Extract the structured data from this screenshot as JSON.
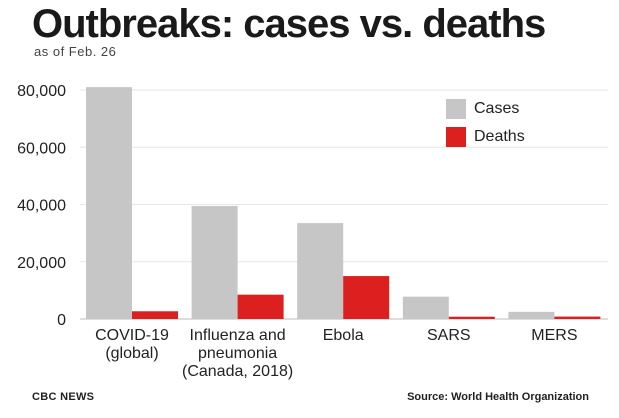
{
  "title": "Outbreaks: cases vs. deaths",
  "subtitle": "as of Feb. 26",
  "footer": {
    "left": "CBC NEWS",
    "right": "Source: World Health Organization"
  },
  "colors": {
    "cases": "#c6c6c6",
    "deaths": "#dc1f1f"
  },
  "chart_data": {
    "type": "bar",
    "categories": [
      [
        "COVID-19",
        "(global)"
      ],
      [
        "Influenza and",
        "pneumonia",
        "(Canada, 2018)"
      ],
      [
        "Ebola"
      ],
      [
        "SARS"
      ],
      [
        "MERS"
      ]
    ],
    "series": [
      {
        "name": "Cases",
        "values": [
          81000,
          39500,
          33500,
          7800,
          2500
        ]
      },
      {
        "name": "Deaths",
        "values": [
          2700,
          8500,
          15000,
          800,
          850
        ]
      }
    ],
    "y_ticks": [
      "80,000",
      "60,000",
      "40,000",
      "20,000",
      "0"
    ],
    "y_tick_values": [
      80000,
      60000,
      40000,
      20000,
      0
    ],
    "ylim": [
      0,
      80000
    ],
    "grid": "horizontal",
    "legend_position": "top-right"
  }
}
